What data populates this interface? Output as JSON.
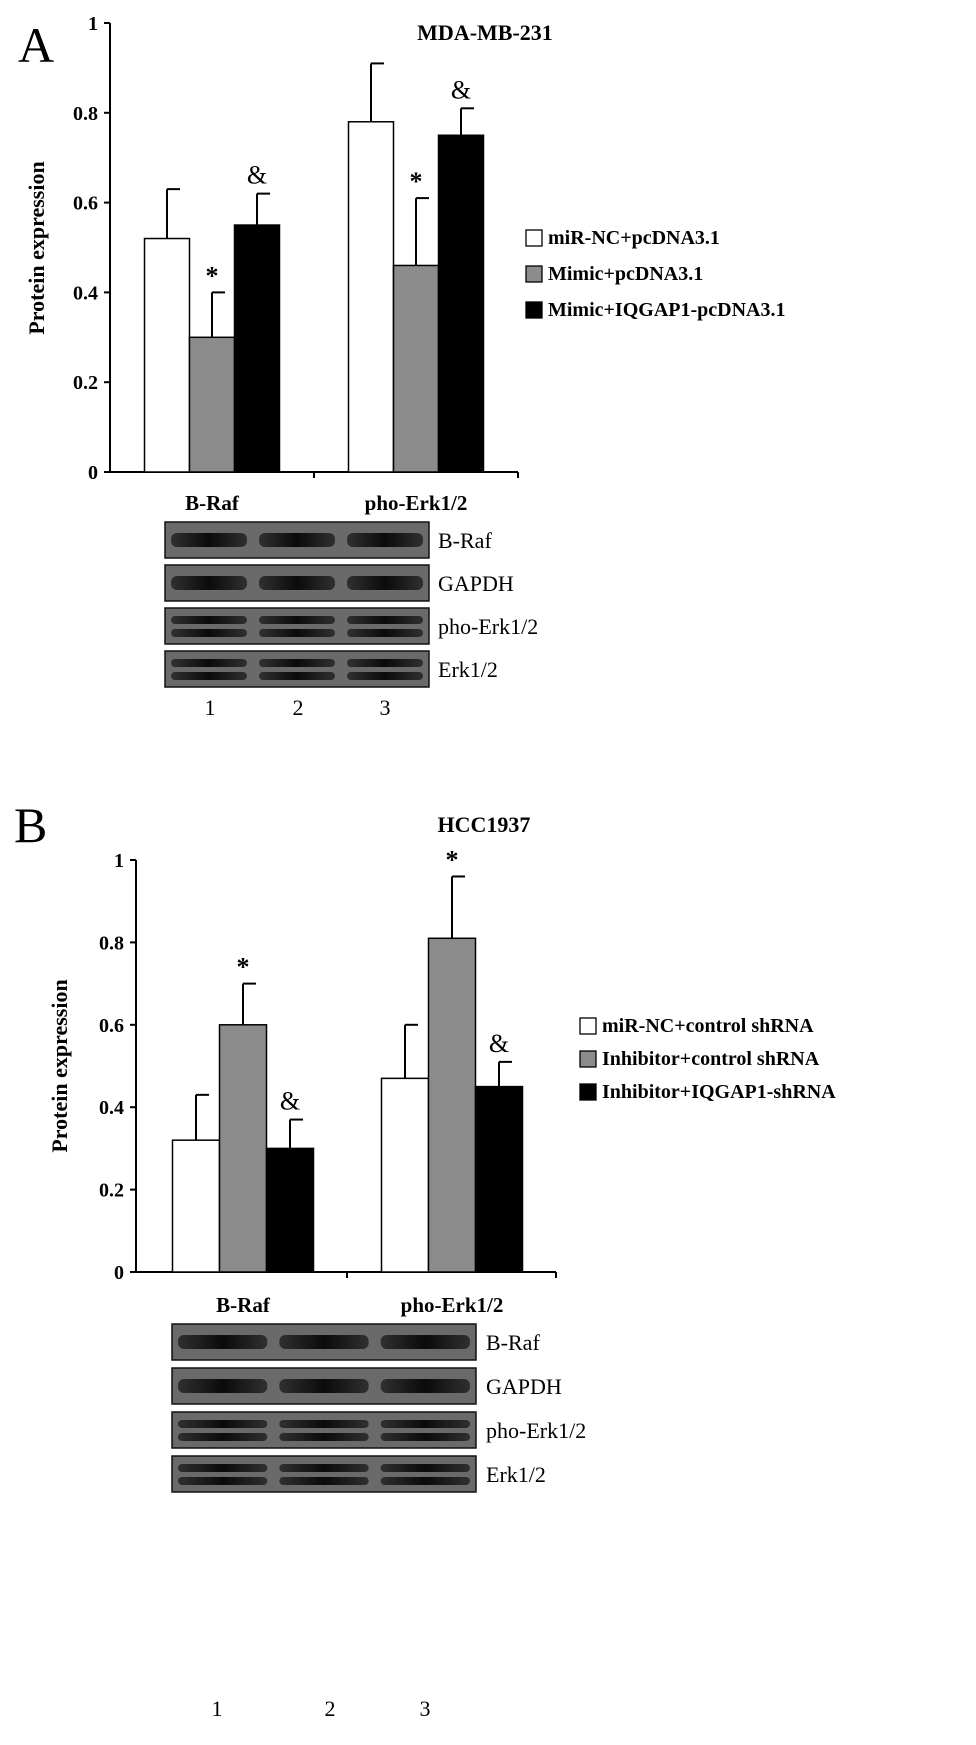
{
  "panels": [
    {
      "letter": "A",
      "chart_data": {
        "type": "bar",
        "title": "MDA-MB-231",
        "ylabel": "Protein expression",
        "xlabel": "",
        "ylim": [
          0,
          1
        ],
        "yticks": [
          "0",
          "0.2",
          "0.4",
          "0.6",
          "0.8",
          "1"
        ],
        "categories": [
          "B-Raf",
          "pho-Erk1/2"
        ],
        "series": [
          {
            "name": "miR-NC+pcDNA3.1",
            "color": "#ffffff",
            "values": [
              0.52,
              0.78
            ],
            "errors": [
              0.11,
              0.13
            ],
            "marks": [
              "",
              ""
            ]
          },
          {
            "name": "Mimic+pcDNA3.1",
            "color": "#8c8c8c",
            "values": [
              0.3,
              0.46
            ],
            "errors": [
              0.1,
              0.15
            ],
            "marks": [
              "*",
              "*"
            ]
          },
          {
            "name": "Mimic+IQGAP1-pcDNA3.1",
            "color": "#000000",
            "values": [
              0.55,
              0.75
            ],
            "errors": [
              0.07,
              0.06
            ],
            "marks": [
              "&",
              "&"
            ]
          }
        ],
        "legend_position": "right",
        "grid": false
      },
      "blot": {
        "rows": [
          {
            "label": "B-Raf",
            "type": "single"
          },
          {
            "label": "GAPDH",
            "type": "single"
          },
          {
            "label": "pho-Erk1/2",
            "type": "double"
          },
          {
            "label": "Erk1/2",
            "type": "double"
          }
        ],
        "lanes": [
          "1",
          "2",
          "3"
        ]
      }
    },
    {
      "letter": "B",
      "chart_data": {
        "type": "bar",
        "title": "HCC1937",
        "ylabel": "Protein expression",
        "xlabel": "",
        "ylim": [
          0,
          1
        ],
        "yticks": [
          "0",
          "0.2",
          "0.4",
          "0.6",
          "0.8",
          "1"
        ],
        "categories": [
          "B-Raf",
          "pho-Erk1/2"
        ],
        "series": [
          {
            "name": "miR-NC+control shRNA",
            "color": "#ffffff",
            "values": [
              0.32,
              0.47
            ],
            "errors": [
              0.11,
              0.13
            ],
            "marks": [
              "",
              ""
            ]
          },
          {
            "name": "Inhibitor+control shRNA",
            "color": "#8c8c8c",
            "values": [
              0.6,
              0.81
            ],
            "errors": [
              0.1,
              0.15
            ],
            "marks": [
              "*",
              "*"
            ]
          },
          {
            "name": "Inhibitor+IQGAP1-shRNA",
            "color": "#000000",
            "values": [
              0.3,
              0.45
            ],
            "errors": [
              0.07,
              0.06
            ],
            "marks": [
              "&",
              "&"
            ]
          }
        ],
        "legend_position": "right",
        "grid": false
      },
      "blot": {
        "rows": [
          {
            "label": "B-Raf",
            "type": "single"
          },
          {
            "label": "GAPDH",
            "type": "single"
          },
          {
            "label": "pho-Erk1/2",
            "type": "double"
          },
          {
            "label": "Erk1/2",
            "type": "double"
          }
        ],
        "lanes": [
          "1",
          "2",
          "3"
        ]
      }
    }
  ]
}
